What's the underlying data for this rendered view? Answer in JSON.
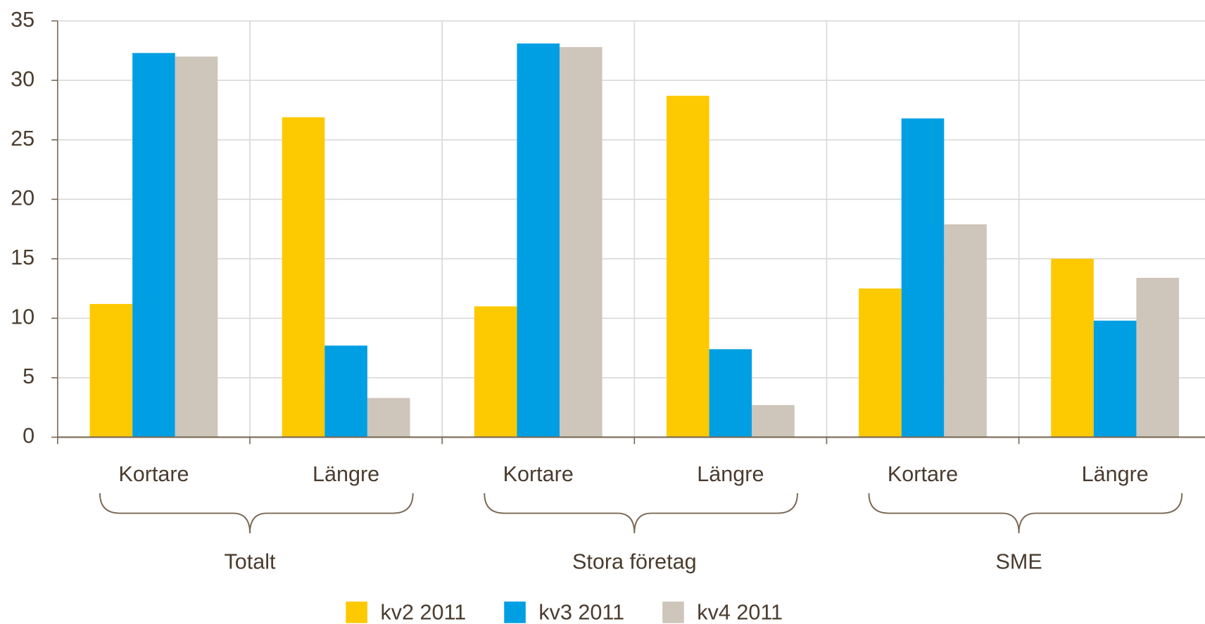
{
  "chart_data": {
    "type": "bar",
    "groups": [
      "Totalt",
      "Stora företag",
      "SME"
    ],
    "categories": [
      "Kortare",
      "Längre",
      "Kortare",
      "Längre",
      "Kortare",
      "Längre"
    ],
    "series": [
      {
        "name": "kv2 2011",
        "color": "#fdc900",
        "values": [
          11.2,
          26.9,
          11.0,
          28.7,
          12.5,
          15.0
        ]
      },
      {
        "name": "kv3 2011",
        "color": "#009fe3",
        "values": [
          32.3,
          7.7,
          33.1,
          7.4,
          26.8,
          9.8
        ]
      },
      {
        "name": "kv4 2011",
        "color": "#cec5bb",
        "values": [
          32.0,
          3.3,
          32.8,
          2.7,
          17.9,
          13.4
        ]
      }
    ],
    "ylim": [
      0,
      35
    ],
    "yticks": [
      0,
      5,
      10,
      15,
      20,
      25,
      30,
      35
    ],
    "grid": true
  }
}
